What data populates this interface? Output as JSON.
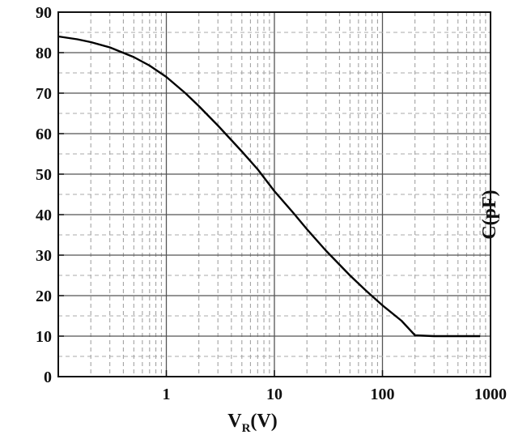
{
  "chart_data": {
    "type": "line",
    "x_scale": "log",
    "xlim": [
      0.1,
      1000
    ],
    "ylim": [
      0,
      90
    ],
    "xlabel": "V",
    "xlabel_sub": "R",
    "xlabel_unit": "(V)",
    "ylabel": "C(pF)",
    "x_ticks": [
      {
        "value": 1,
        "label": "1"
      },
      {
        "value": 10,
        "label": "10"
      },
      {
        "value": 100,
        "label": "100"
      },
      {
        "value": 1000,
        "label": "1000"
      }
    ],
    "y_ticks": [
      {
        "value": 0,
        "label": "0"
      },
      {
        "value": 10,
        "label": "10"
      },
      {
        "value": 20,
        "label": "20"
      },
      {
        "value": 30,
        "label": "30"
      },
      {
        "value": 40,
        "label": "40"
      },
      {
        "value": 50,
        "label": "50"
      },
      {
        "value": 60,
        "label": "60"
      },
      {
        "value": 70,
        "label": "70"
      },
      {
        "value": 80,
        "label": "80"
      },
      {
        "value": 90,
        "label": "90"
      }
    ],
    "grid": true,
    "series": [
      {
        "color": "#000000",
        "x": [
          0.1,
          0.15,
          0.2,
          0.3,
          0.5,
          0.7,
          1,
          1.5,
          2,
          3,
          5,
          7,
          10,
          15,
          20,
          30,
          50,
          70,
          100,
          150,
          200,
          300,
          500,
          800
        ],
        "y": [
          84,
          83.3,
          82.6,
          81.3,
          78.9,
          76.8,
          74,
          70,
          66.8,
          62,
          55.6,
          51.2,
          45.8,
          40.4,
          36.4,
          31.1,
          25,
          21.3,
          17.6,
          13.8,
          10.2,
          10,
          10,
          10
        ]
      }
    ]
  }
}
